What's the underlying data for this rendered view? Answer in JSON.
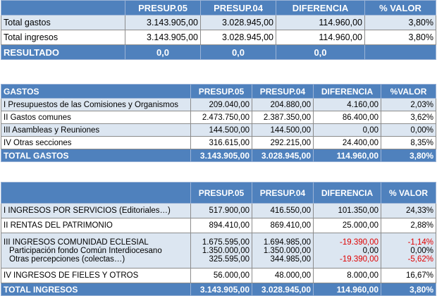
{
  "summary": {
    "headers": [
      "",
      "PRESUP.05",
      "PRESUP.04",
      "DIFERENCIA",
      "% VALOR"
    ],
    "rows": [
      {
        "label": "Total gastos",
        "p05": "3.143.905,00",
        "p04": "3.028.945,00",
        "dif": "114.960,00",
        "pct": "3,80%"
      },
      {
        "label": "Total ingresos",
        "p05": "3.143.905,00",
        "p04": "3.028.945,00",
        "dif": "114.960,00",
        "pct": "3,80%"
      }
    ],
    "result": {
      "label": "RESULTADO",
      "p05": "0,0",
      "p04": "0,0",
      "dif": "0,0",
      "pct": ""
    }
  },
  "gastos": {
    "headers": [
      "GASTOS",
      "PRESUP.05",
      "PRESUP.04",
      "DIFERENCIA",
      "%VALOR"
    ],
    "rows": [
      {
        "label": "I Presupuestos de las Comisiones y Organismos",
        "p05": "209.040,00",
        "p04": "204.880,00",
        "dif": "4.160,00",
        "pct": "2,03%"
      },
      {
        "label": "II Gastos comunes",
        "p05": "2.473.750,00",
        "p04": "2.387.350,00",
        "dif": "86.400,00",
        "pct": "3,62%"
      },
      {
        "label": "III Asambleas y Reuniones",
        "p05": "144.500,00",
        "p04": "144.500,00",
        "dif": "0,00",
        "pct": "0,00%"
      },
      {
        "label": "IV Otras  secciones",
        "p05": "316.615,00",
        "p04": "292.215,00",
        "dif": "24.400,00",
        "pct": "8,35%"
      }
    ],
    "total": {
      "label": "TOTAL GASTOS",
      "p05": "3.143.905,00",
      "p04": "3.028.945,00",
      "dif": "114.960,00",
      "pct": "3,80%"
    }
  },
  "ingresos": {
    "headers": [
      "",
      "PRESUP.05",
      "PRESUP.04",
      "DIFERENCIA",
      "% VALOR"
    ],
    "row1": {
      "label": "I INGRESOS POR SERVICIOS (Editoriales…)",
      "p05": "517.900,00",
      "p04": "416.550,00",
      "dif": "101.350,00",
      "pct": "24,33%"
    },
    "row2": {
      "label": "II RENTAS DEL PATRIMONIO",
      "p05": "894.410,00",
      "p04": "869.410,00",
      "dif": "25.000,00",
      "pct": "2,88%"
    },
    "row3": {
      "label": "III INGRESOS COMUNIDAD ECLESIAL",
      "p05": "1.675.595,00",
      "p04": "1.694.985,00",
      "dif": "-19.390,00",
      "pct": "-1,14%",
      "sub1": {
        "label": "Participación fondo Común Interdiocesano",
        "p05": "1.350.000,00",
        "p04": "1.350.000,00",
        "dif": "0,00",
        "pct": "0,00%"
      },
      "sub2": {
        "label": "Otras percepciones (colectas…)",
        "p05": "325.595,00",
        "p04": "344.985,00",
        "dif": "-19.390,00",
        "pct": "-5,62%"
      }
    },
    "row4": {
      "label": "IV INGRESOS DE FIELES Y OTROS",
      "p05": "56.000,00",
      "p04": "48.000,00",
      "dif": "8.000,00",
      "pct": "16,67%"
    },
    "total": {
      "label": "TOTAL INGRESOS",
      "p05": "3.143.905,00",
      "p04": "3.028.945,00",
      "dif": "114.960,00",
      "pct": "3,80%"
    }
  },
  "colors": {
    "header_blue": "#4f81bd",
    "light_blue": "#dce6f1",
    "negative": "#e00000"
  }
}
